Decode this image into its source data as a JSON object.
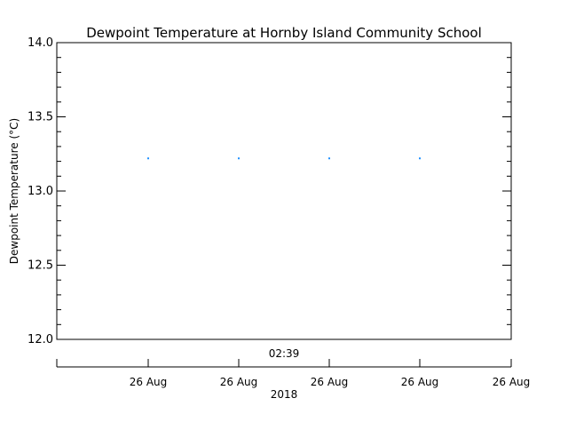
{
  "chart_data": {
    "type": "scatter",
    "title": "Dewpoint Temperature at Hornby Island Community School",
    "ylabel": "Dewpoint Temperature (°C)",
    "ylim": [
      12.0,
      14.0
    ],
    "y_ticks": [
      "12.0",
      "12.5",
      "13.0",
      "13.5",
      "14.0"
    ],
    "y_tick_values": [
      12.0,
      12.5,
      13.0,
      13.5,
      14.0
    ],
    "upper_axis_label": "02:39",
    "x_tick_labels": [
      "26 Aug",
      "26 Aug",
      "26 Aug",
      "26 Aug",
      "26 Aug"
    ],
    "xlabel": "2018",
    "grid": false,
    "series": [
      {
        "color": "#1e90ff",
        "points": [
          {
            "x_index": 1,
            "y": 13.22
          },
          {
            "x_index": 2,
            "y": 13.22
          },
          {
            "x_index": 3,
            "y": 13.22
          },
          {
            "x_index": 4,
            "y": 13.22
          }
        ]
      }
    ]
  }
}
